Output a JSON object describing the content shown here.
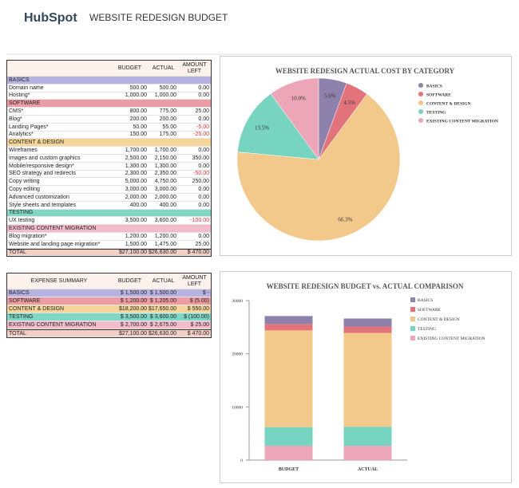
{
  "header": {
    "logo": "HubSpot",
    "title": "WEBSITE REDESIGN BUDGET"
  },
  "budget_table": {
    "columns": [
      "BUDGET",
      "ACTUAL",
      "AMOUNT LEFT"
    ],
    "sections": [
      {
        "name": "BASICS",
        "color": "#b7b3e0",
        "items": [
          [
            "Domain name",
            "500.00",
            "500.00",
            "0.00"
          ],
          [
            "Hosting*",
            "1,000.00",
            "1,000.00",
            "0.00"
          ]
        ]
      },
      {
        "name": "SOFTWARE",
        "color": "#ec9ca4",
        "items": [
          [
            "CMS*",
            "800.00",
            "775.00",
            "25.00"
          ],
          [
            "Blog*",
            "200.00",
            "200.00",
            "0.00"
          ],
          [
            "Landing Pages*",
            "50.00",
            "55.00",
            "-5.00"
          ],
          [
            "Analytics*",
            "150.00",
            "175.00",
            "-25.00"
          ]
        ]
      },
      {
        "name": "CONTENT & DESIGN",
        "color": "#f6d59a",
        "items": [
          [
            "Wireframes",
            "1,700.00",
            "1,700.00",
            "0.00"
          ],
          [
            "Images and custom graphics",
            "2,500.00",
            "2,150.00",
            "350.00"
          ],
          [
            "Mobile/responsive design*",
            "1,300.00",
            "1,300.00",
            "0.00"
          ],
          [
            "SEO strategy and redirects",
            "2,300.00",
            "2,350.00",
            "-50.00"
          ],
          [
            "Copy writing",
            "5,000.00",
            "4,750.00",
            "250.00"
          ],
          [
            "Copy editing",
            "3,000.00",
            "3,000.00",
            "0.00"
          ],
          [
            "Advanced customization",
            "2,000.00",
            "2,000.00",
            "0.00"
          ],
          [
            "Style sheets and templates",
            "400.00",
            "400.00",
            "0.00"
          ]
        ]
      },
      {
        "name": "TESTING",
        "color": "#7fd8c6",
        "items": [
          [
            "UX testing",
            "3,500.00",
            "3,600.00",
            "-100.00"
          ]
        ]
      },
      {
        "name": "EXISTING CONTENT MIGRATION",
        "color": "#f3bccb",
        "items": [
          [
            "Blog migration*",
            "1,200.00",
            "1,200.00",
            "0.00"
          ],
          [
            "Website and landing page migration*",
            "1,500.00",
            "1,475.00",
            "25.00"
          ]
        ]
      }
    ],
    "total": [
      "TOTAL",
      "$27,100.00",
      "$26,630.00",
      "$ 470.00"
    ]
  },
  "summary_table": {
    "columns": [
      "EXPENSE SUMMARY",
      "BUDGET",
      "ACTUAL",
      "AMOUNT LEFT"
    ],
    "rows": [
      {
        "color": "#b7b3e0",
        "cells": [
          "BASICS",
          "$ 1,500.00",
          "$ 1,500.00",
          "$ -"
        ]
      },
      {
        "color": "#ec9ca4",
        "cells": [
          "SOFTWARE",
          "$ 1,200.00",
          "$ 1,205.00",
          "$ (5.00)"
        ]
      },
      {
        "color": "#f6d59a",
        "cells": [
          "CONTENT & DESIGN",
          "$18,200.00",
          "$17,650.00",
          "$ 550.00"
        ]
      },
      {
        "color": "#7fd8c6",
        "cells": [
          "TESTING",
          "$ 3,500.00",
          "$ 3,600.00",
          "$ (100.00)"
        ]
      },
      {
        "color": "#f3bccb",
        "cells": [
          "EXISTING CONTENT MIGRATION",
          "$ 2,700.00",
          "$ 2,675.00",
          "$ 25.00"
        ]
      },
      {
        "color": "#f4cfc4",
        "cells": [
          "TOTAL",
          "$27,100.00",
          "$26,630.00",
          "$ 470.00"
        ]
      }
    ]
  },
  "chart_data": [
    {
      "type": "pie",
      "title": "WEBSITE REDESIGN ACTUAL COST BY CATEGORY",
      "categories": [
        "BASICS",
        "SOFTWARE",
        "CONTENT & DESIGN",
        "TESTING",
        "EXISTING CONTENT MIGRATION"
      ],
      "values": [
        5.6,
        4.5,
        66.3,
        13.5,
        10.0
      ],
      "value_labels": [
        "5.6%",
        "4.5%",
        "66.3%",
        "13.5%",
        "10.0%"
      ],
      "colors": [
        "#8e82ad",
        "#e3737a",
        "#f2c98a",
        "#76d4c0",
        "#eda5b8"
      ]
    },
    {
      "type": "stacked-bar",
      "title": "WEBSITE REDESIGN BUDGET vs. ACTUAL COMPARISON",
      "categories": [
        "BUDGET",
        "ACTUAL"
      ],
      "series": [
        {
          "name": "BASICS",
          "color": "#8e82ad",
          "values": [
            1500,
            1500
          ]
        },
        {
          "name": "SOFTWARE",
          "color": "#e3737a",
          "values": [
            1200,
            1205
          ]
        },
        {
          "name": "CONTENT & DESIGN",
          "color": "#f2c98a",
          "values": [
            18200,
            17650
          ]
        },
        {
          "name": "TESTING",
          "color": "#76d4c0",
          "values": [
            3500,
            3600
          ]
        },
        {
          "name": "EXISTING CONTENT MIGRATION",
          "color": "#eda5b8",
          "values": [
            2700,
            2675
          ]
        }
      ],
      "ylim": [
        0,
        30000
      ],
      "yticks": [
        0,
        10000,
        20000,
        30000
      ],
      "grid": false
    }
  ]
}
